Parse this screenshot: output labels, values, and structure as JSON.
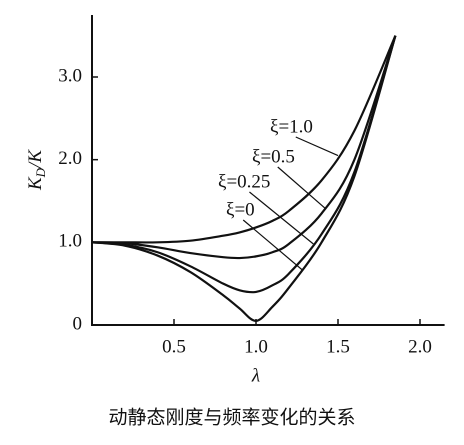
{
  "chart_data": {
    "type": "line",
    "title": "动静态刚度与频率变化的关系",
    "xlabel": "λ",
    "ylabel": {
      "main": "K",
      "sub": "D",
      "rest": "/K"
    },
    "x": [
      0,
      0.2,
      0.4,
      0.6,
      0.8,
      0.9,
      1.0,
      1.1,
      1.2,
      1.4,
      1.6,
      1.85
    ],
    "series": [
      {
        "name": "ξ=1.0",
        "color": "#111111",
        "values": [
          1,
          1,
          1,
          1.02,
          1.08,
          1.12,
          1.18,
          1.26,
          1.38,
          1.75,
          2.35,
          3.5
        ]
      },
      {
        "name": "ξ=0.5",
        "color": "#111111",
        "values": [
          1,
          0.99,
          0.94,
          0.87,
          0.82,
          0.81,
          0.83,
          0.88,
          0.98,
          1.35,
          2.0,
          3.5
        ]
      },
      {
        "name": "ξ=0.25",
        "color": "#111111",
        "values": [
          1,
          0.97,
          0.88,
          0.71,
          0.5,
          0.42,
          0.4,
          0.48,
          0.62,
          1.1,
          1.85,
          3.5
        ]
      },
      {
        "name": "ξ=0",
        "color": "#111111",
        "values": [
          1,
          0.96,
          0.84,
          0.64,
          0.36,
          0.2,
          0.05,
          0.22,
          0.45,
          1.0,
          1.8,
          3.5
        ]
      }
    ],
    "xlim": [
      0,
      2.15
    ],
    "ylim": [
      0,
      3.75
    ],
    "xticks": [
      0.5,
      {
        "value": 1,
        "label": "1.0"
      },
      1.5,
      {
        "value": 2,
        "label": "2.0"
      }
    ],
    "yticks": [
      0,
      {
        "value": 1,
        "label": "1.0"
      },
      {
        "value": 2,
        "label": "2.0"
      },
      {
        "value": 3,
        "label": "3.0"
      }
    ]
  }
}
